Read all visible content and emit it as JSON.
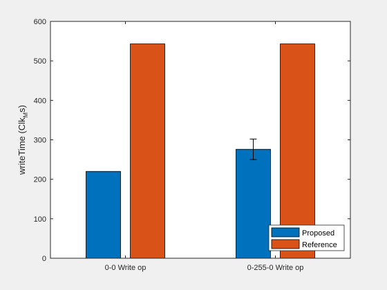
{
  "chart_data": {
    "type": "bar",
    "categories": [
      "0-0 Write op",
      "0-255-0 Write op"
    ],
    "series": [
      {
        "name": "Proposed",
        "values": [
          220,
          276
        ],
        "error": [
          null,
          26
        ],
        "color": "#0072BD"
      },
      {
        "name": "Reference",
        "values": [
          543,
          543
        ],
        "color": "#D95319"
      }
    ],
    "title": "",
    "xlabel": "",
    "ylabel": {
      "main": "writeTime (Clk",
      "sub": "M",
      "tail": "s)"
    },
    "ylim": [
      0,
      600
    ],
    "yticks": [
      "0",
      "100",
      "200",
      "300",
      "400",
      "500",
      "600"
    ],
    "grid": false,
    "legend_placement": "bottom-right"
  }
}
